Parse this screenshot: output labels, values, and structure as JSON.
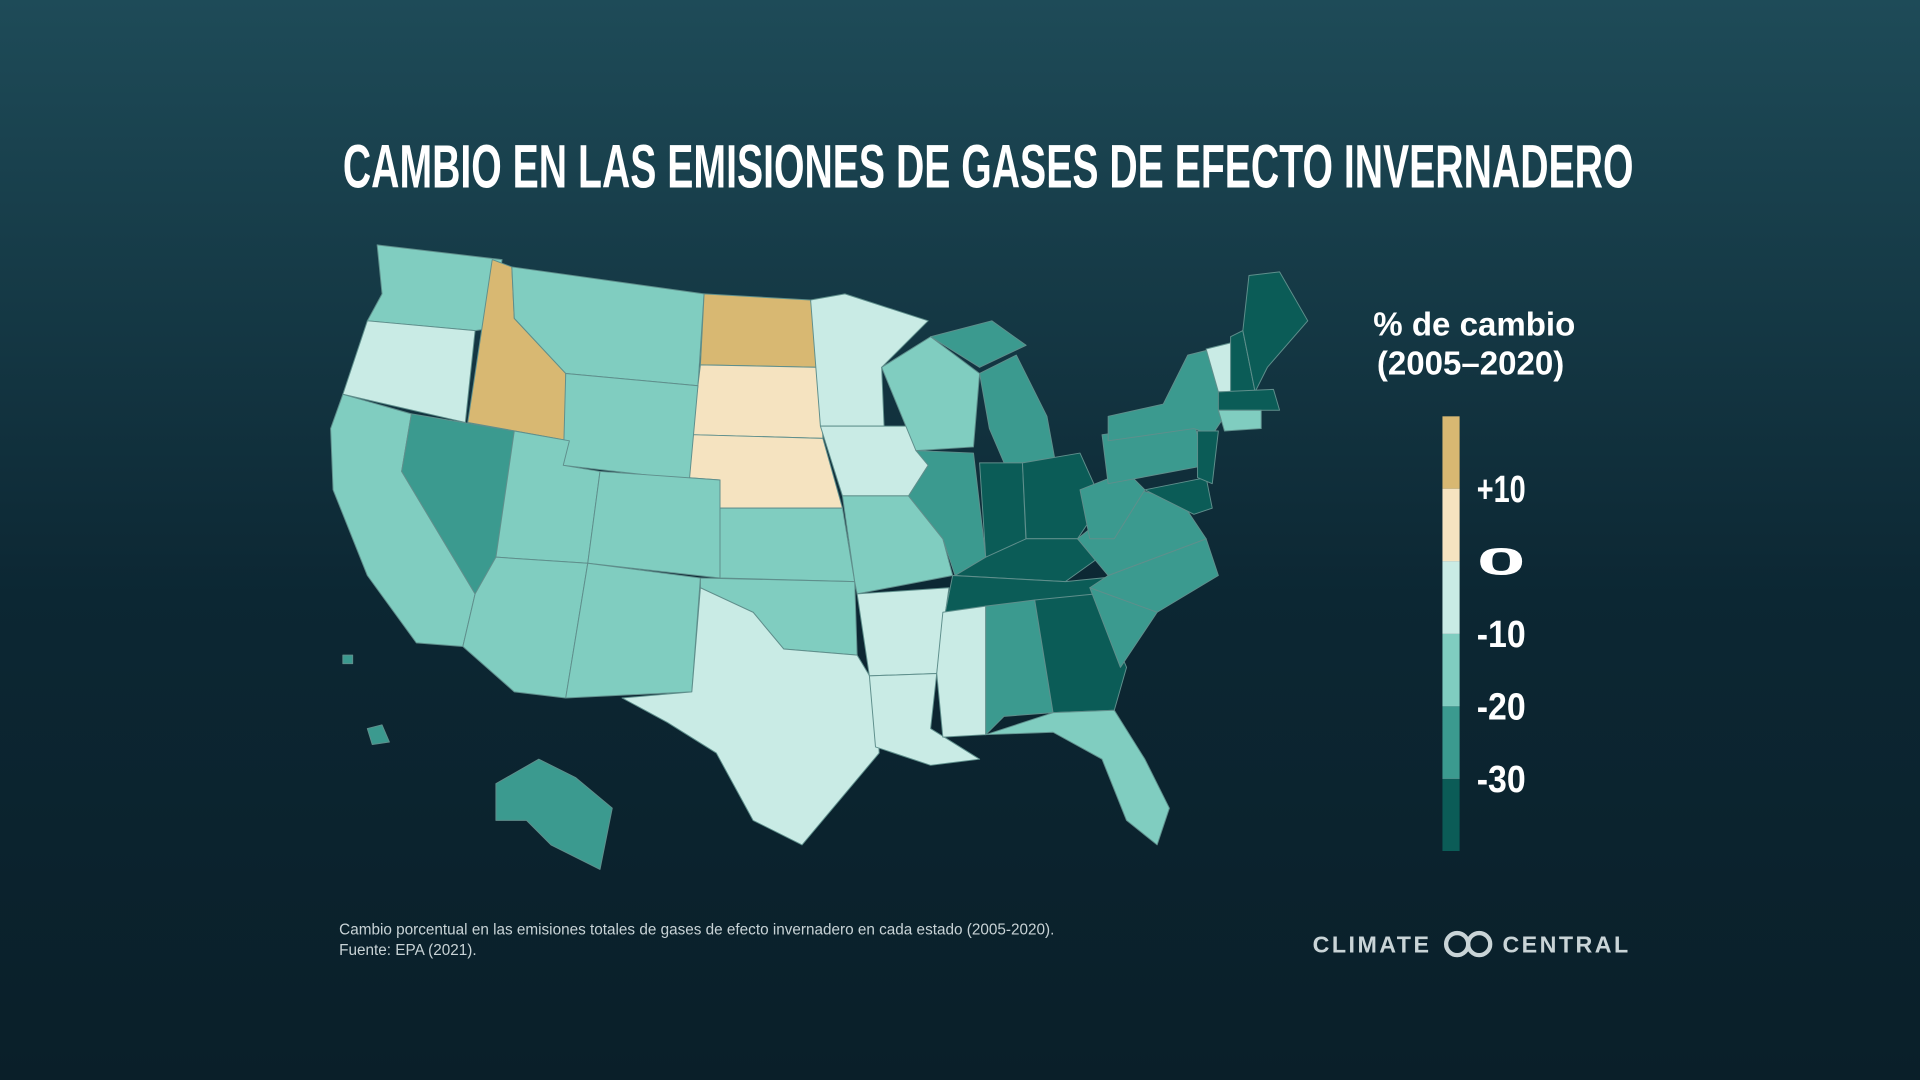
{
  "title": "CAMBIO EN LAS EMISIONES DE GASES DE EFECTO INVERNADERO",
  "legend": {
    "title": [
      "% de cambio",
      "(2005–2020)"
    ],
    "ylim": [
      -40,
      20
    ],
    "yticks": [
      {
        "value": 10,
        "label": "+10"
      },
      0,
      -10,
      -20,
      -30
    ],
    "colors": [
      "#0b5c57",
      "#3b9a8f",
      "#80cdc0",
      "#c9ebe5",
      "#f5e3c0",
      "#d8b872"
    ]
  },
  "caption": [
    "Cambio porcentual en las emisiones totales de gases de efecto invernadero en cada estado (2005-2020).",
    "Fuente: EPA (2021)."
  ],
  "logo": [
    "CLIMATE",
    "CENTRAL"
  ]
}
